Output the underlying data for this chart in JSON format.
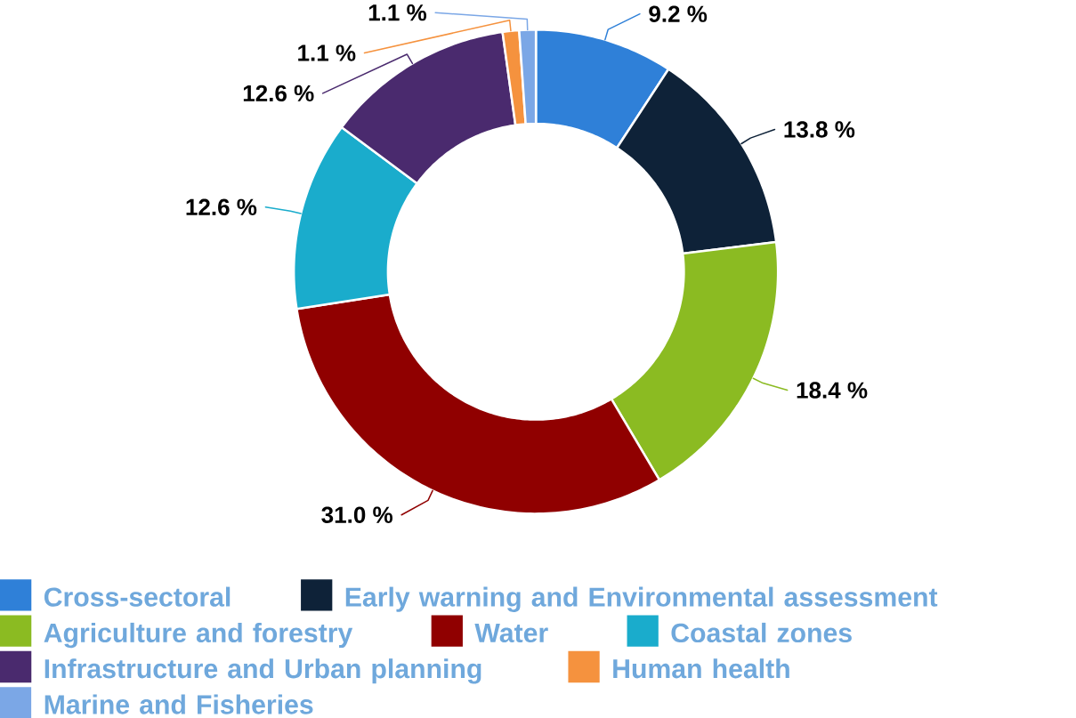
{
  "chart_data": {
    "type": "donut",
    "categories": [
      "Cross-sectoral",
      "Early warning and Environmental assessment",
      "Agriculture and forestry",
      "Water",
      "Coastal zones",
      "Infrastructure and Urban planning",
      "Human health",
      "Marine and Fisheries"
    ],
    "values": [
      9.2,
      13.8,
      18.4,
      31.0,
      12.6,
      12.6,
      1.1,
      1.1
    ],
    "colors": [
      "#2f80d8",
      "#0e2238",
      "#8bbb22",
      "#900000",
      "#1aaccc",
      "#4a2a6e",
      "#f5923e",
      "#7ba7e6"
    ],
    "value_labels": [
      "9.2 %",
      "13.8 %",
      "18.4 %",
      "31.0 %",
      "12.6 %",
      "12.6 %",
      "1.1 %",
      "1.1 %"
    ],
    "legend": "bottom"
  }
}
